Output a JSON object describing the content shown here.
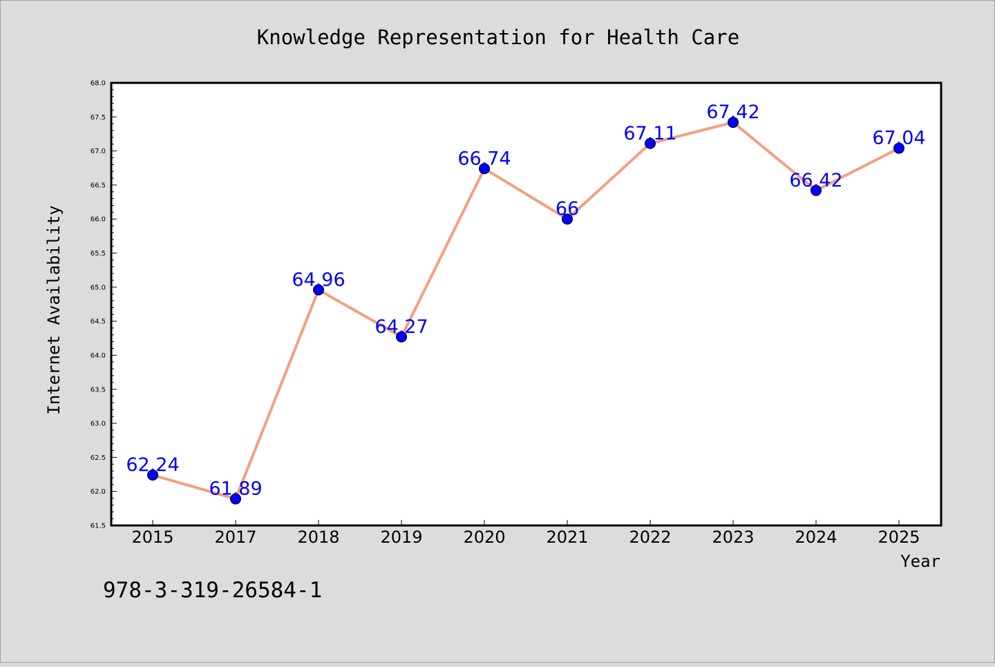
{
  "chart_data": {
    "type": "line",
    "title": "Knowledge Representation for Health Care",
    "xlabel": "Year",
    "ylabel": "Internet Availability",
    "categories": [
      "2015",
      "2017",
      "2018",
      "2019",
      "2020",
      "2021",
      "2022",
      "2023",
      "2024",
      "2025"
    ],
    "series": [
      {
        "values": [
          62.24,
          61.89,
          64.96,
          64.27,
          66.74,
          66,
          67.11,
          67.42,
          66.42,
          67.04
        ],
        "data_labels": [
          "62.24",
          "61.89",
          "64.96",
          "64.27",
          "66.74",
          "66",
          "67.11",
          "67.42",
          "66.42",
          "67.04"
        ],
        "line_color": "#f4a07c",
        "marker_color": "#0000ff"
      }
    ],
    "ylim": [
      61.5,
      68.0
    ],
    "yticks": [
      "61.5",
      "62.0",
      "62.5",
      "63.0",
      "63.5",
      "64.0",
      "64.5",
      "65.0",
      "65.5",
      "66.0",
      "66.5",
      "67.0",
      "67.5",
      "68.0"
    ],
    "grid": false,
    "legend": "none"
  },
  "footer_text": "978-3-319-26584-1",
  "colors": {
    "background": "#dcdcdc",
    "plot_background": "#ffffff",
    "line": "#f4a07c",
    "marker": "#0000ff",
    "data_label": "#0000ff"
  }
}
